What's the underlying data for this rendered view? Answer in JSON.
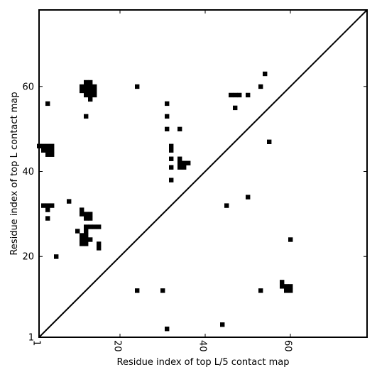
{
  "chart_data": {
    "type": "scatter",
    "xlabel": "Residue index of top L/5 contact map",
    "ylabel": "Residue index of top L contact map",
    "xlim": [
      1,
      78
    ],
    "ylim": [
      1,
      78
    ],
    "xticks": [
      1,
      20,
      40,
      60
    ],
    "yticks": [
      1,
      20,
      40,
      60
    ],
    "grid": false,
    "legend": "none",
    "marker_color": "#000000",
    "diagonal": [
      [
        1,
        1
      ],
      [
        78,
        78
      ]
    ],
    "series": [
      {
        "group": "upper-left (top L contacts)",
        "points": [
          [
            3,
            56
          ],
          [
            12,
            53
          ],
          [
            13,
            57
          ],
          [
            11,
            59
          ],
          [
            12,
            59
          ],
          [
            13,
            59
          ],
          [
            14,
            59
          ],
          [
            12,
            58
          ],
          [
            13,
            58
          ],
          [
            14,
            58
          ],
          [
            11,
            60
          ],
          [
            12,
            60
          ],
          [
            13,
            60
          ],
          [
            14,
            60
          ],
          [
            12,
            61
          ],
          [
            13,
            61
          ],
          [
            1,
            46
          ],
          [
            2,
            46
          ],
          [
            3,
            46
          ],
          [
            4,
            46
          ],
          [
            2,
            45
          ],
          [
            3,
            45
          ],
          [
            4,
            45
          ],
          [
            3,
            44
          ],
          [
            4,
            44
          ],
          [
            2,
            32
          ],
          [
            3,
            32
          ],
          [
            4,
            32
          ],
          [
            3,
            31
          ],
          [
            3,
            29
          ],
          [
            5,
            20
          ],
          [
            8,
            33
          ],
          [
            11,
            31
          ],
          [
            11,
            30
          ],
          [
            12,
            30
          ],
          [
            13,
            30
          ],
          [
            12,
            29
          ],
          [
            13,
            29
          ],
          [
            10,
            26
          ],
          [
            12,
            27
          ],
          [
            13,
            27
          ],
          [
            14,
            27
          ],
          [
            15,
            27
          ],
          [
            12,
            26
          ],
          [
            11,
            25
          ],
          [
            12,
            25
          ],
          [
            11,
            24
          ],
          [
            12,
            24
          ],
          [
            13,
            24
          ],
          [
            11,
            23
          ],
          [
            12,
            23
          ],
          [
            15,
            23
          ],
          [
            15,
            22
          ],
          [
            24,
            60
          ],
          [
            31,
            56
          ],
          [
            31,
            53
          ],
          [
            31,
            50
          ],
          [
            34,
            50
          ],
          [
            32,
            46
          ],
          [
            32,
            45
          ],
          [
            32,
            43
          ],
          [
            32,
            41
          ],
          [
            32,
            38
          ],
          [
            34,
            43
          ],
          [
            34,
            42
          ],
          [
            35,
            42
          ],
          [
            36,
            42
          ],
          [
            34,
            41
          ],
          [
            35,
            41
          ],
          [
            46,
            58
          ],
          [
            47,
            58
          ],
          [
            48,
            58
          ],
          [
            50,
            58
          ],
          [
            53,
            60
          ],
          [
            54,
            63
          ],
          [
            47,
            55
          ],
          [
            55,
            47
          ],
          [
            50,
            34
          ],
          [
            45,
            32
          ]
        ]
      },
      {
        "group": "lower-right (top L/5 contacts)",
        "points": [
          [
            24,
            12
          ],
          [
            30,
            12
          ],
          [
            31,
            3
          ],
          [
            44,
            4
          ],
          [
            53,
            12
          ],
          [
            58,
            14
          ],
          [
            58,
            13
          ],
          [
            59,
            13
          ],
          [
            60,
            13
          ],
          [
            59,
            12
          ],
          [
            60,
            12
          ],
          [
            60,
            24
          ]
        ]
      }
    ]
  }
}
